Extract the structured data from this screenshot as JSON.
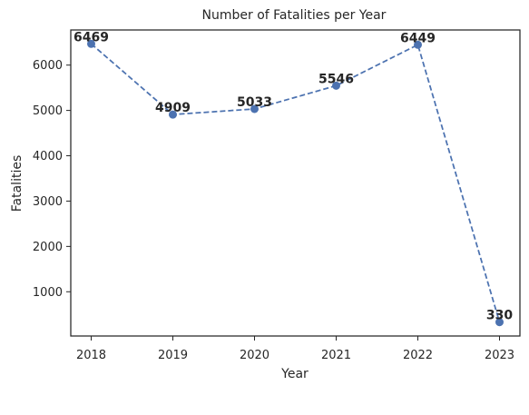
{
  "chart_data": {
    "type": "line",
    "title": "Number of Fatalities per Year",
    "xlabel": "Year",
    "ylabel": "Fatalities",
    "x": [
      2018,
      2019,
      2020,
      2021,
      2022,
      2023
    ],
    "x_tick_labels": [
      "2018",
      "2019",
      "2020",
      "2021",
      "2022",
      "2023"
    ],
    "series": [
      {
        "values": [
          6469,
          4909,
          5033,
          5546,
          6449,
          330
        ]
      }
    ],
    "data_labels": [
      "6469",
      "4909",
      "5033",
      "5546",
      "6449",
      "330"
    ],
    "y_ticks": [
      1000,
      2000,
      3000,
      4000,
      5000,
      6000
    ],
    "y_tick_labels": [
      "1000",
      "2000",
      "3000",
      "4000",
      "5000",
      "6000"
    ],
    "xlim": [
      2017.75,
      2023.25
    ],
    "ylim": [
      24,
      6775
    ],
    "grid": false,
    "line_style": "dashed",
    "marker": "circle",
    "line_color": "#4c72b0",
    "marker_color": "#4c72b0"
  }
}
